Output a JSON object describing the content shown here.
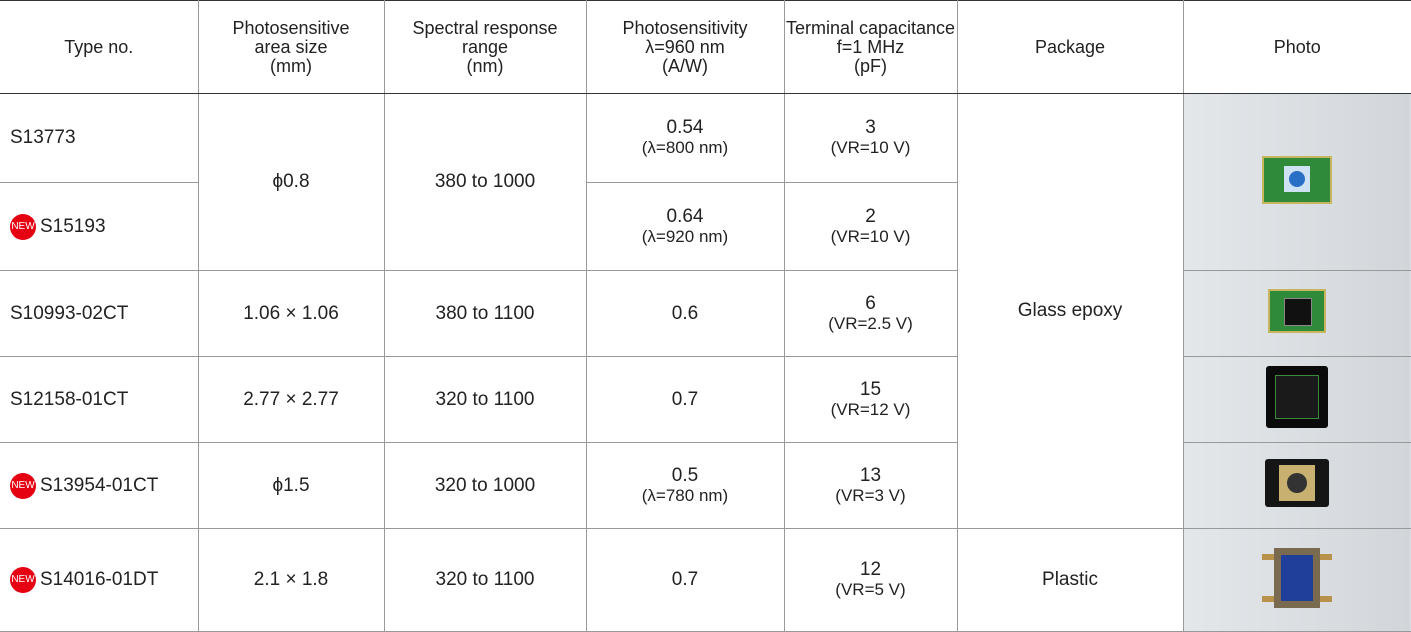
{
  "table": {
    "badge": "NEW",
    "header": [
      [
        "Type no."
      ],
      [
        "Photosensitive",
        "area size",
        "(mm)"
      ],
      [
        "Spectral response",
        "range",
        "(nm)"
      ],
      [
        "Photosensitivity",
        "λ=960 nm",
        "(A/W)"
      ],
      [
        "Terminal capacitance",
        "f=1 MHz",
        "(pF)"
      ],
      [
        "Package"
      ],
      [
        "Photo"
      ]
    ],
    "rows": [
      {
        "type": "S13773",
        "area": "ϕ0.8",
        "range": "380 to 1000",
        "sensitivity": [
          "0.54",
          "(λ=800 nm)"
        ],
        "capacitance": [
          "3",
          "(VR=10 V)"
        ],
        "package": "Glass epoxy"
      },
      {
        "type": "S15193",
        "sensitivity": [
          "0.64",
          "(λ=920 nm)"
        ],
        "capacitance": [
          "2",
          "(VR=10 V)"
        ]
      },
      {
        "type": "S10993-02CT",
        "area": "1.06 × 1.06",
        "range": "380 to 1100",
        "sensitivity": [
          "0.6"
        ],
        "capacitance": [
          "6",
          "(VR=2.5 V)"
        ]
      },
      {
        "type": "S12158-01CT",
        "area": "2.77 × 2.77",
        "range": "320 to 1100",
        "sensitivity": [
          "0.7"
        ],
        "capacitance": [
          "15",
          "(VR=12 V)"
        ]
      },
      {
        "type": "S13954-01CT",
        "area": "ϕ1.5",
        "range": "320 to 1000",
        "sensitivity": [
          "0.5",
          "(λ=780 nm)"
        ],
        "capacitance": [
          "13",
          "(VR=3 V)"
        ]
      },
      {
        "type": "S14016-01DT",
        "area": "2.1 × 1.8",
        "range": "320 to 1100",
        "sensitivity": [
          "0.7"
        ],
        "capacitance": [
          "12",
          "(VR=5 V)"
        ],
        "package": "Plastic"
      }
    ]
  }
}
